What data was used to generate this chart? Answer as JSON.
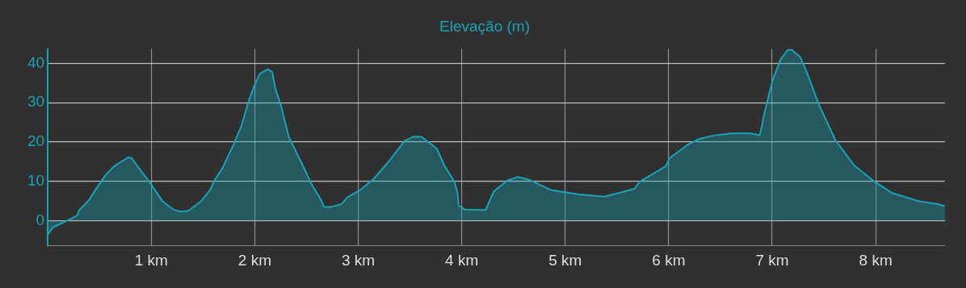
{
  "chart_data": {
    "type": "area",
    "title": "Elevação (m)",
    "x": [
      0,
      0.05,
      0.22,
      0.29,
      0.3,
      0.4,
      0.46,
      0.56,
      0.64,
      0.78,
      0.81,
      0.88,
      0.98,
      1.11,
      1.22,
      1.29,
      1.36,
      1.48,
      1.57,
      1.61,
      1.69,
      1.79,
      1.87,
      1.94,
      1.99,
      2.05,
      2.13,
      2.17,
      2.2,
      2.25,
      2.33,
      2.45,
      2.55,
      2.64,
      2.67,
      2.74,
      2.84,
      2.89,
      3.02,
      3.15,
      3.3,
      3.45,
      3.53,
      3.61,
      3.76,
      3.83,
      3.93,
      3.96,
      3.97,
      4.03,
      4.23,
      4.31,
      4.44,
      4.54,
      4.65,
      4.86,
      5.12,
      5.38,
      5.67,
      5.72,
      5.9,
      5.97,
      6.01,
      6.19,
      6.3,
      6.45,
      6.61,
      6.79,
      6.88,
      6.9,
      6.92,
      7.0,
      7.08,
      7.15,
      7.19,
      7.27,
      7.34,
      7.45,
      7.61,
      7.79,
      7.99,
      8.16,
      8.42,
      8.6,
      8.67
    ],
    "series": [
      {
        "color": "#17a2b8",
        "values": [
          -3.5,
          -1.7,
          0.4,
          1.4,
          2.5,
          5.3,
          7.8,
          11.6,
          13.8,
          16.1,
          15.9,
          13.4,
          9.9,
          4.9,
          2.7,
          2.3,
          2.5,
          4.9,
          7.8,
          10.2,
          13.4,
          19.0,
          24.0,
          30.3,
          33.9,
          37.4,
          38.5,
          37.7,
          33.5,
          29.6,
          21.2,
          14.8,
          9.2,
          5.3,
          3.5,
          3.5,
          4.2,
          5.8,
          7.8,
          10.6,
          15.2,
          20.3,
          21.3,
          21.3,
          18.3,
          14.1,
          9.9,
          7.0,
          3.9,
          2.8,
          2.7,
          7.4,
          10.2,
          11.1,
          10.4,
          7.8,
          6.7,
          6.1,
          8.1,
          9.9,
          12.7,
          13.8,
          15.9,
          19.4,
          20.8,
          21.7,
          22.2,
          22.2,
          21.7,
          24.0,
          26.8,
          35.3,
          40.9,
          43.4,
          43.4,
          41.6,
          37.4,
          29.6,
          20.5,
          14.1,
          9.9,
          7.0,
          4.9,
          4.2,
          3.7
        ]
      }
    ],
    "xlim": [
      0,
      8.67
    ],
    "xticks": [
      {
        "value": 1,
        "label": "1 km"
      },
      {
        "value": 2,
        "label": "2 km"
      },
      {
        "value": 3,
        "label": "3 km"
      },
      {
        "value": 4,
        "label": "4 km"
      },
      {
        "value": 5,
        "label": "5 km"
      },
      {
        "value": 6,
        "label": "6 km"
      },
      {
        "value": 7,
        "label": "7 km"
      },
      {
        "value": 8,
        "label": "8 km"
      }
    ],
    "ylim": [
      -6.3,
      43.6
    ],
    "yticks": [
      0,
      10,
      20,
      30,
      40
    ],
    "grid": true,
    "legend": false,
    "marker": "none",
    "line_style": "solid"
  }
}
